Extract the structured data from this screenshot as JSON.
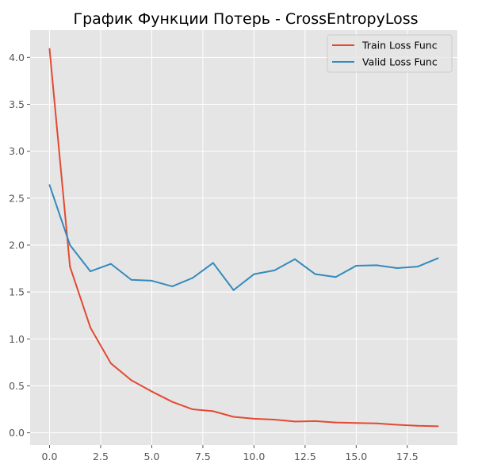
{
  "chart_data": {
    "type": "line",
    "title": "График Функции Потерь - CrossEntropyLoss",
    "xlabel": "",
    "ylabel": "",
    "xlim": [
      -0.95,
      19.95
    ],
    "ylim": [
      -0.13,
      4.29
    ],
    "xticks": [
      0.0,
      2.5,
      5.0,
      7.5,
      10.0,
      12.5,
      15.0,
      17.5
    ],
    "xtick_labels": [
      "0.0",
      "2.5",
      "5.0",
      "7.5",
      "10.0",
      "12.5",
      "15.0",
      "17.5"
    ],
    "yticks": [
      0.0,
      0.5,
      1.0,
      1.5,
      2.0,
      2.5,
      3.0,
      3.5,
      4.0
    ],
    "ytick_labels": [
      "0.0",
      "0.5",
      "1.0",
      "1.5",
      "2.0",
      "2.5",
      "3.0",
      "3.5",
      "4.0"
    ],
    "grid": true,
    "legend_position": "top-right",
    "x": [
      0,
      1,
      2,
      3,
      4,
      5,
      6,
      7,
      8,
      9,
      10,
      11,
      12,
      13,
      14,
      15,
      16,
      17,
      18,
      19
    ],
    "series": [
      {
        "name": "Train Loss Func",
        "color": "#E24A33",
        "values": [
          4.09,
          1.77,
          1.12,
          0.74,
          0.56,
          0.44,
          0.33,
          0.25,
          0.23,
          0.17,
          0.15,
          0.14,
          0.12,
          0.125,
          0.11,
          0.105,
          0.1,
          0.085,
          0.075,
          0.07
        ]
      },
      {
        "name": "Valid Loss Func",
        "color": "#348ABD",
        "values": [
          2.64,
          2.0,
          1.72,
          1.8,
          1.63,
          1.62,
          1.56,
          1.65,
          1.81,
          1.52,
          1.69,
          1.73,
          1.85,
          1.69,
          1.66,
          1.78,
          1.785,
          1.755,
          1.77,
          1.86
        ]
      }
    ]
  }
}
